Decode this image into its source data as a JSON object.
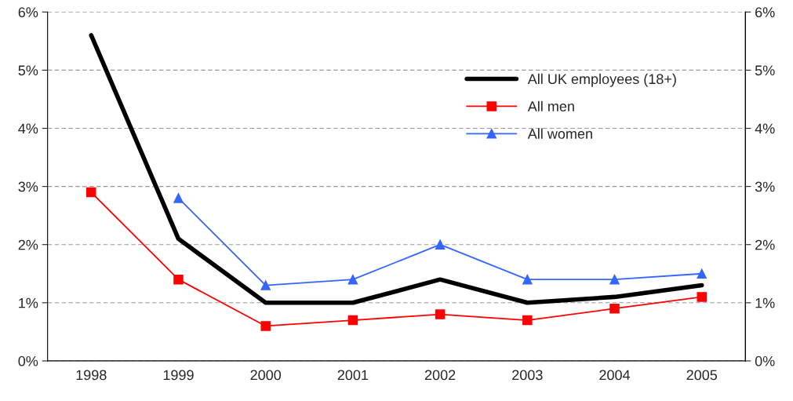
{
  "chart_data": {
    "type": "line",
    "categories": [
      "1998",
      "1999",
      "2000",
      "2001",
      "2002",
      "2003",
      "2004",
      "2005"
    ],
    "series": [
      {
        "name": "All UK employees (18+)",
        "color": "#000000",
        "marker": "none",
        "values": [
          5.6,
          2.1,
          1.0,
          1.0,
          1.4,
          1.0,
          1.1,
          1.3
        ]
      },
      {
        "name": "All men",
        "color": "#ff0000",
        "marker": "square",
        "values": [
          2.9,
          1.4,
          0.6,
          0.7,
          0.8,
          0.7,
          0.9,
          1.1
        ]
      },
      {
        "name": "All women",
        "color": "#3366ff",
        "marker": "triangle",
        "values": [
          null,
          2.8,
          1.3,
          1.4,
          2.0,
          1.4,
          1.4,
          1.5
        ]
      }
    ],
    "ylim": [
      0,
      6
    ],
    "yticks": [
      {
        "value": 0,
        "label": "0%"
      },
      {
        "value": 1,
        "label": "1%"
      },
      {
        "value": 2,
        "label": "2%"
      },
      {
        "value": 3,
        "label": "3%"
      },
      {
        "value": 4,
        "label": "4%"
      },
      {
        "value": 5,
        "label": "5%"
      },
      {
        "value": 6,
        "label": "6%"
      }
    ],
    "y2lim": [
      0,
      6
    ],
    "y2ticks": [
      {
        "value": 0,
        "label": "0%"
      },
      {
        "value": 1,
        "label": "1%"
      },
      {
        "value": 2,
        "label": "2%"
      },
      {
        "value": 3,
        "label": "3%"
      },
      {
        "value": 4,
        "label": "4%"
      },
      {
        "value": 5,
        "label": "5%"
      },
      {
        "value": 6,
        "label": "6%"
      }
    ],
    "grid": "y",
    "legend": "top right"
  }
}
